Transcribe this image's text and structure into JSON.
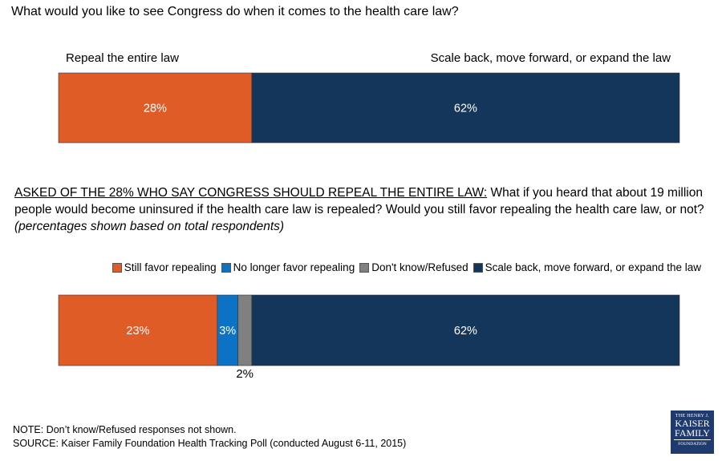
{
  "question1": "What would you like to see Congress do when it comes to the health care law?",
  "question2": {
    "lead": "ASKED OF THE 28% WHO SAY CONGRESS SHOULD REPEAL THE ENTIRE LAW:",
    "body": " What if you heard that about 19 million people would become uninsured if the health care law is repealed?  Would you still favor repealing the health care law, or not? ",
    "note": "(percentages shown based on total respondents)"
  },
  "chart_data": [
    {
      "type": "bar",
      "orientation": "horizontal",
      "stacked": true,
      "categories_labels": [
        "Repeal the entire law",
        "Scale back, move forward, or expand the law"
      ],
      "series": [
        {
          "name": "Repeal the entire law",
          "value": 28,
          "label": "28%",
          "color": "#e05c26"
        },
        {
          "name": "Scale back, move forward, or expand the law",
          "value": 62,
          "label": "62%",
          "color": "#15365b"
        }
      ]
    },
    {
      "type": "bar",
      "orientation": "horizontal",
      "stacked": true,
      "legend": "top-right",
      "series": [
        {
          "name": "Still favor repealing",
          "value": 23,
          "label": "23%",
          "color": "#e05c26"
        },
        {
          "name": "No longer favor repealing",
          "value": 3,
          "label": "3%",
          "color": "#0b72c6"
        },
        {
          "name": "Don't know/Refused",
          "value": 2,
          "label": "2%",
          "color": "#808080"
        },
        {
          "name": "Scale back, move forward, or expand the law",
          "value": 62,
          "label": "62%",
          "color": "#15365b"
        }
      ]
    }
  ],
  "notes": {
    "note": "NOTE: Don’t know/Refused responses not shown.",
    "source": "SOURCE: Kaiser Family Foundation Health Tracking Poll (conducted August 6-11, 2015)"
  },
  "logo": {
    "line1": "THE HENRY J.",
    "line2": "KAISER",
    "line3": "FAMILY",
    "line4": "FOUNDATION"
  }
}
